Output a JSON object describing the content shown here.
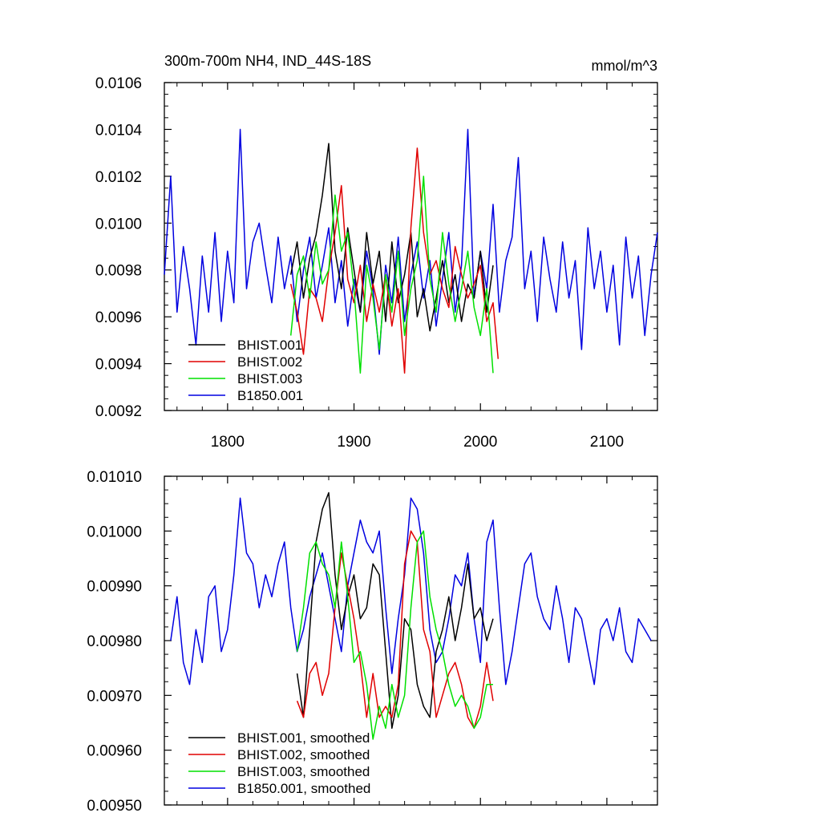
{
  "chart_data": [
    {
      "type": "line",
      "title": "300m-700m NH4, IND_44S-18S",
      "units_label": "mmol/m^3",
      "xlim": [
        1750,
        2140
      ],
      "ylim": [
        0.0092,
        0.0106
      ],
      "x_ticks": [
        1800,
        1900,
        2000,
        2100
      ],
      "x_tick_labels": [
        "1800",
        "1900",
        "2000",
        "2100"
      ],
      "y_ticks": [
        0.0092,
        0.0094,
        0.0096,
        0.0098,
        0.01,
        0.0102,
        0.0104,
        0.0106
      ],
      "y_tick_labels": [
        "0.0092",
        "0.0094",
        "0.0096",
        "0.0098",
        "0.0100",
        "0.0102",
        "0.0104",
        "0.0106"
      ],
      "legend_position": "bottom-left",
      "series": [
        {
          "name": "BHIST.001",
          "color": "#000000",
          "x": [
            1850,
            1855,
            1860,
            1865,
            1870,
            1875,
            1880,
            1885,
            1890,
            1895,
            1900,
            1905,
            1910,
            1915,
            1920,
            1925,
            1930,
            1935,
            1940,
            1945,
            1950,
            1955,
            1960,
            1965,
            1970,
            1975,
            1980,
            1985,
            1990,
            1995,
            2000,
            2005,
            2010
          ],
          "y": [
            0.00978,
            0.00992,
            0.00968,
            0.00985,
            0.00995,
            0.01012,
            0.01034,
            0.00988,
            0.00972,
            0.00998,
            0.0098,
            0.00962,
            0.00996,
            0.00974,
            0.00988,
            0.00958,
            0.00992,
            0.00966,
            0.00978,
            0.00996,
            0.0096,
            0.00972,
            0.00954,
            0.00968,
            0.00984,
            0.00966,
            0.00978,
            0.00958,
            0.00974,
            0.00968,
            0.00988,
            0.00962,
            0.00982
          ]
        },
        {
          "name": "BHIST.002",
          "color": "#e00000",
          "x": [
            1850,
            1855,
            1860,
            1865,
            1870,
            1875,
            1880,
            1885,
            1890,
            1895,
            1900,
            1905,
            1910,
            1915,
            1920,
            1925,
            1930,
            1935,
            1940,
            1945,
            1950,
            1955,
            1960,
            1965,
            1970,
            1975,
            1980,
            1985,
            1990,
            1995,
            2000,
            2005,
            2010,
            2014
          ],
          "y": [
            0.00974,
            0.00962,
            0.00944,
            0.00972,
            0.00968,
            0.00958,
            0.0098,
            0.00996,
            0.01016,
            0.00976,
            0.00966,
            0.00982,
            0.00958,
            0.00974,
            0.00962,
            0.00978,
            0.00956,
            0.00972,
            0.00936,
            0.00998,
            0.01032,
            0.00996,
            0.00978,
            0.00984,
            0.00972,
            0.00964,
            0.0099,
            0.00978,
            0.00968,
            0.00974,
            0.00982,
            0.00958,
            0.00966,
            0.00942
          ]
        },
        {
          "name": "BHIST.003",
          "color": "#00e000",
          "x": [
            1850,
            1855,
            1860,
            1865,
            1870,
            1875,
            1880,
            1885,
            1890,
            1895,
            1900,
            1905,
            1910,
            1915,
            1920,
            1925,
            1930,
            1935,
            1940,
            1945,
            1950,
            1955,
            1960,
            1965,
            1970,
            1975,
            1980,
            1985,
            1990,
            1995,
            2000,
            2005,
            2010
          ],
          "y": [
            0.00952,
            0.00978,
            0.00986,
            0.00968,
            0.00992,
            0.00974,
            0.0098,
            0.01012,
            0.00988,
            0.00996,
            0.00972,
            0.00936,
            0.00982,
            0.00968,
            0.00946,
            0.00978,
            0.00962,
            0.00988,
            0.00952,
            0.00972,
            0.00984,
            0.0102,
            0.00976,
            0.00962,
            0.00996,
            0.00974,
            0.00958,
            0.00972,
            0.00988,
            0.00964,
            0.00952,
            0.00972,
            0.00936
          ]
        },
        {
          "name": "B1850.001",
          "color": "#0000e0",
          "x": [
            1750,
            1755,
            1760,
            1765,
            1770,
            1775,
            1780,
            1785,
            1790,
            1795,
            1800,
            1805,
            1810,
            1815,
            1820,
            1825,
            1830,
            1835,
            1840,
            1845,
            1850,
            1855,
            1860,
            1865,
            1870,
            1875,
            1880,
            1885,
            1890,
            1895,
            1900,
            1905,
            1910,
            1915,
            1920,
            1925,
            1930,
            1935,
            1940,
            1945,
            1950,
            1955,
            1960,
            1965,
            1970,
            1975,
            1980,
            1985,
            1990,
            1995,
            2000,
            2005,
            2010,
            2015,
            2020,
            2025,
            2030,
            2035,
            2040,
            2045,
            2050,
            2055,
            2060,
            2065,
            2070,
            2075,
            2080,
            2085,
            2090,
            2095,
            2100,
            2105,
            2110,
            2115,
            2120,
            2125,
            2130,
            2135,
            2140
          ],
          "y": [
            0.00978,
            0.0102,
            0.00962,
            0.0099,
            0.00972,
            0.00948,
            0.00986,
            0.00962,
            0.00996,
            0.00958,
            0.00988,
            0.00966,
            0.0104,
            0.00972,
            0.00992,
            0.01,
            0.00982,
            0.00966,
            0.00994,
            0.00972,
            0.00986,
            0.00958,
            0.0098,
            0.00994,
            0.00968,
            0.00982,
            0.00998,
            0.00966,
            0.00984,
            0.00956,
            0.00976,
            0.00962,
            0.00988,
            0.00972,
            0.00944,
            0.00982,
            0.00966,
            0.00994,
            0.00958,
            0.00978,
            0.00992,
            0.00968,
            0.00984,
            0.00956,
            0.00976,
            0.00996,
            0.00962,
            0.00982,
            0.0104,
            0.00968,
            0.00988,
            0.00972,
            0.01008,
            0.00962,
            0.00984,
            0.00994,
            0.01028,
            0.00972,
            0.00988,
            0.00958,
            0.00994,
            0.00976,
            0.00962,
            0.00992,
            0.00968,
            0.00984,
            0.00946,
            0.00998,
            0.00972,
            0.00988,
            0.00962,
            0.00982,
            0.00948,
            0.00994,
            0.00968,
            0.00986,
            0.00952,
            0.00978,
            0.00996
          ]
        }
      ]
    },
    {
      "type": "line",
      "xlim": [
        1750,
        2140
      ],
      "ylim": [
        0.0095,
        0.0101
      ],
      "x_ticks": [
        1800,
        1900,
        2000,
        2100
      ],
      "y_ticks": [
        0.0095,
        0.0096,
        0.0097,
        0.0098,
        0.0099,
        0.01,
        0.0101
      ],
      "y_tick_labels": [
        "0.00950",
        "0.00960",
        "0.00970",
        "0.00980",
        "0.00990",
        "0.01000",
        "0.01010"
      ],
      "legend_position": "bottom-left",
      "series": [
        {
          "name": "BHIST.001, smoothed",
          "color": "#000000",
          "x": [
            1855,
            1860,
            1865,
            1870,
            1875,
            1880,
            1885,
            1890,
            1895,
            1900,
            1905,
            1910,
            1915,
            1920,
            1925,
            1930,
            1935,
            1940,
            1945,
            1950,
            1955,
            1960,
            1965,
            1970,
            1975,
            1980,
            1985,
            1990,
            1995,
            2000,
            2005,
            2010
          ],
          "y": [
            0.00974,
            0.00966,
            0.00982,
            0.00998,
            0.01004,
            0.01007,
            0.00992,
            0.00982,
            0.00988,
            0.00992,
            0.00984,
            0.00986,
            0.00994,
            0.00992,
            0.00978,
            0.00964,
            0.0097,
            0.00984,
            0.00982,
            0.00972,
            0.00968,
            0.00966,
            0.00978,
            0.00982,
            0.00988,
            0.0098,
            0.00986,
            0.00994,
            0.00984,
            0.00986,
            0.0098,
            0.00984
          ]
        },
        {
          "name": "BHIST.002, smoothed",
          "color": "#e00000",
          "x": [
            1855,
            1860,
            1865,
            1870,
            1875,
            1880,
            1885,
            1890,
            1895,
            1900,
            1905,
            1910,
            1915,
            1920,
            1925,
            1930,
            1935,
            1940,
            1945,
            1950,
            1955,
            1960,
            1965,
            1970,
            1975,
            1980,
            1985,
            1990,
            1995,
            2000,
            2005,
            2010
          ],
          "y": [
            0.00969,
            0.00966,
            0.00974,
            0.00976,
            0.0097,
            0.00974,
            0.00986,
            0.00996,
            0.0099,
            0.00984,
            0.00976,
            0.00966,
            0.00974,
            0.00966,
            0.00968,
            0.00966,
            0.00972,
            0.00994,
            0.01,
            0.00998,
            0.00982,
            0.00978,
            0.00966,
            0.0097,
            0.00974,
            0.00976,
            0.00972,
            0.00966,
            0.00964,
            0.00968,
            0.00976,
            0.00969
          ]
        },
        {
          "name": "BHIST.003, smoothed",
          "color": "#00e000",
          "x": [
            1855,
            1860,
            1865,
            1870,
            1875,
            1880,
            1885,
            1890,
            1895,
            1900,
            1905,
            1910,
            1915,
            1920,
            1925,
            1930,
            1935,
            1940,
            1945,
            1950,
            1955,
            1960,
            1965,
            1970,
            1975,
            1980,
            1985,
            1990,
            1995,
            2000,
            2005,
            2010
          ],
          "y": [
            0.00978,
            0.00986,
            0.00996,
            0.00998,
            0.00994,
            0.00992,
            0.00986,
            0.00998,
            0.00988,
            0.00976,
            0.00978,
            0.00972,
            0.00962,
            0.00968,
            0.00964,
            0.00972,
            0.00966,
            0.0097,
            0.00986,
            0.00998,
            0.01,
            0.00988,
            0.00982,
            0.00978,
            0.00972,
            0.00968,
            0.0097,
            0.00968,
            0.00964,
            0.00966,
            0.00972,
            0.00972
          ]
        },
        {
          "name": "B1850.001, smoothed",
          "color": "#0000e0",
          "x": [
            1755,
            1760,
            1765,
            1770,
            1775,
            1780,
            1785,
            1790,
            1795,
            1800,
            1805,
            1810,
            1815,
            1820,
            1825,
            1830,
            1835,
            1840,
            1845,
            1850,
            1855,
            1860,
            1865,
            1870,
            1875,
            1880,
            1885,
            1890,
            1895,
            1900,
            1905,
            1910,
            1915,
            1920,
            1925,
            1930,
            1935,
            1940,
            1945,
            1950,
            1955,
            1960,
            1965,
            1970,
            1975,
            1980,
            1985,
            1990,
            1995,
            2000,
            2005,
            2010,
            2015,
            2020,
            2025,
            2030,
            2035,
            2040,
            2045,
            2050,
            2055,
            2060,
            2065,
            2070,
            2075,
            2080,
            2085,
            2090,
            2095,
            2100,
            2105,
            2110,
            2115,
            2120,
            2125,
            2130,
            2135
          ],
          "y": [
            0.0098,
            0.00988,
            0.00976,
            0.00972,
            0.00982,
            0.00976,
            0.00988,
            0.0099,
            0.00978,
            0.00982,
            0.00992,
            0.01006,
            0.00996,
            0.00994,
            0.00986,
            0.00992,
            0.00988,
            0.00994,
            0.00998,
            0.00986,
            0.00978,
            0.00982,
            0.00988,
            0.00992,
            0.00996,
            0.0099,
            0.00984,
            0.00978,
            0.0099,
            0.00996,
            0.01002,
            0.00998,
            0.00996,
            0.01,
            0.00986,
            0.00974,
            0.00984,
            0.00992,
            0.01006,
            0.01004,
            0.00996,
            0.00982,
            0.00976,
            0.00978,
            0.00984,
            0.00992,
            0.0099,
            0.00996,
            0.00984,
            0.00976,
            0.00998,
            0.01002,
            0.00986,
            0.00972,
            0.00978,
            0.00986,
            0.00994,
            0.00996,
            0.00988,
            0.00984,
            0.00982,
            0.0099,
            0.00984,
            0.00976,
            0.00986,
            0.00984,
            0.00978,
            0.00972,
            0.00982,
            0.00984,
            0.0098,
            0.00986,
            0.00978,
            0.00976,
            0.00984,
            0.00982,
            0.0098
          ]
        }
      ]
    }
  ]
}
